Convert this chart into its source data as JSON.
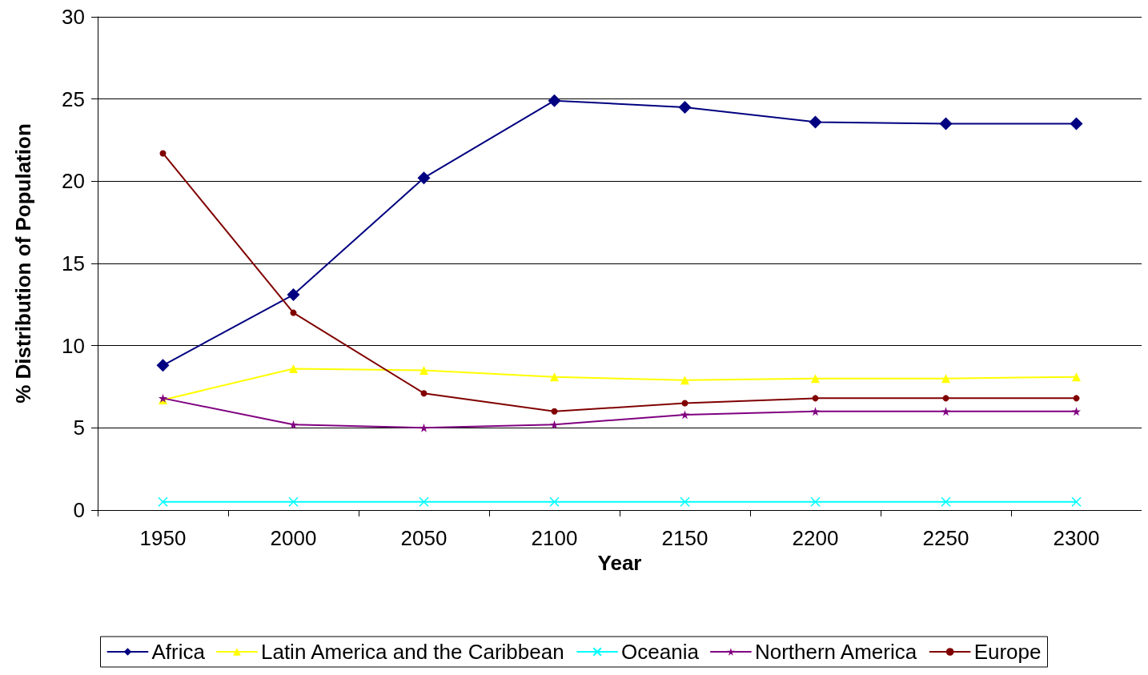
{
  "chart_data": {
    "type": "line",
    "xlabel": "Year",
    "ylabel": "% Distribution of Population",
    "categories": [
      "1950",
      "2000",
      "2050",
      "2100",
      "2150",
      "2200",
      "2250",
      "2300"
    ],
    "series": [
      {
        "name": "Africa",
        "color": "#000080",
        "marker": "diamond",
        "values": [
          8.8,
          13.1,
          20.2,
          24.9,
          24.5,
          23.6,
          23.5,
          23.5
        ]
      },
      {
        "name": "Latin America and the Caribbean",
        "color": "#ffff00",
        "marker": "triangle",
        "values": [
          6.7,
          8.6,
          8.5,
          8.1,
          7.9,
          8.0,
          8.0,
          8.1
        ]
      },
      {
        "name": "Oceania",
        "color": "#00ffff",
        "marker": "cross",
        "values": [
          0.5,
          0.5,
          0.5,
          0.5,
          0.5,
          0.5,
          0.5,
          0.5
        ]
      },
      {
        "name": "Northern America",
        "color": "#800080",
        "marker": "star",
        "values": [
          6.8,
          5.2,
          5.0,
          5.2,
          5.8,
          6.0,
          6.0,
          6.0
        ]
      },
      {
        "name": "Europe",
        "color": "#800000",
        "marker": "circle",
        "values": [
          21.7,
          12.0,
          7.1,
          6.0,
          6.5,
          6.8,
          6.8,
          6.8
        ]
      }
    ],
    "ylim": [
      0,
      30
    ],
    "yticks": [
      0,
      5,
      10,
      15,
      20,
      25,
      30
    ],
    "grid": "y",
    "legend": "bottom",
    "line_style": "solid"
  }
}
